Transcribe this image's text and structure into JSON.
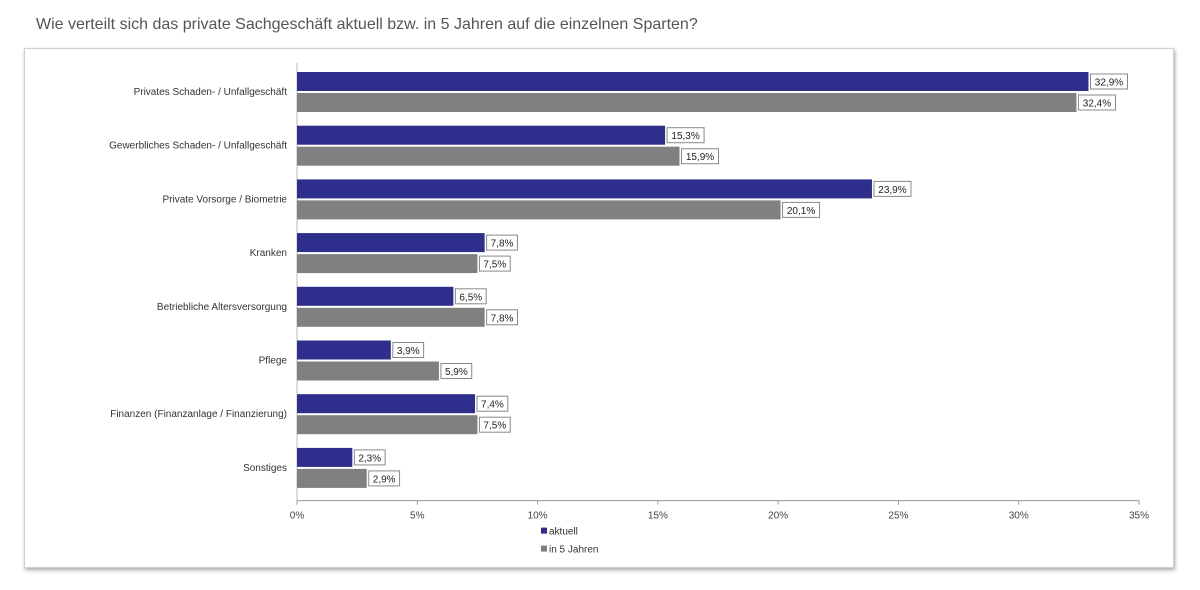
{
  "page": {
    "title": "Wie verteilt sich das private Sachgeschäft aktuell bzw. in 5 Jahren auf die einzelnen Sparten?"
  },
  "chart_data": {
    "type": "bar",
    "orientation": "horizontal",
    "title": "Wie verteilt sich das private Sachgeschäft aktuell bzw. in 5 Jahren auf die einzelnen Sparten?",
    "xlabel": "",
    "ylabel": "",
    "categories": [
      "Privates Schaden- / Unfallgeschäft",
      "Gewerbliches Schaden- / Unfallgeschäft",
      "Private Vorsorge / Biometrie",
      "Kranken",
      "Betriebliche Altersversorgung",
      "Pflege",
      "Finanzen (Finanzanlage / Finanzierung)",
      "Sonstiges"
    ],
    "series": [
      {
        "name": "aktuell",
        "color": "#2e2e8c",
        "values": [
          32.9,
          15.3,
          23.9,
          7.8,
          6.5,
          3.9,
          7.4,
          2.3
        ],
        "labels": [
          "32,9%",
          "15,3%",
          "23,9%",
          "7,8%",
          "6,5%",
          "3,9%",
          "7,4%",
          "2,3%"
        ]
      },
      {
        "name": "in 5 Jahren",
        "color": "#808080",
        "values": [
          32.4,
          15.9,
          20.1,
          7.5,
          7.8,
          5.9,
          7.5,
          2.9
        ],
        "labels": [
          "32,4%",
          "15,9%",
          "20,1%",
          "7,5%",
          "7,8%",
          "5,9%",
          "7,5%",
          "2,9%"
        ]
      }
    ],
    "xlim": [
      0,
      35
    ],
    "xticks": [
      0,
      5,
      10,
      15,
      20,
      25,
      30,
      35
    ],
    "xtick_labels": [
      "0%",
      "5%",
      "10%",
      "15%",
      "20%",
      "25%",
      "30%",
      "35%"
    ],
    "legend": {
      "position": "bottom",
      "entries": [
        "aktuell",
        "in 5 Jahren"
      ]
    },
    "grid": false
  }
}
